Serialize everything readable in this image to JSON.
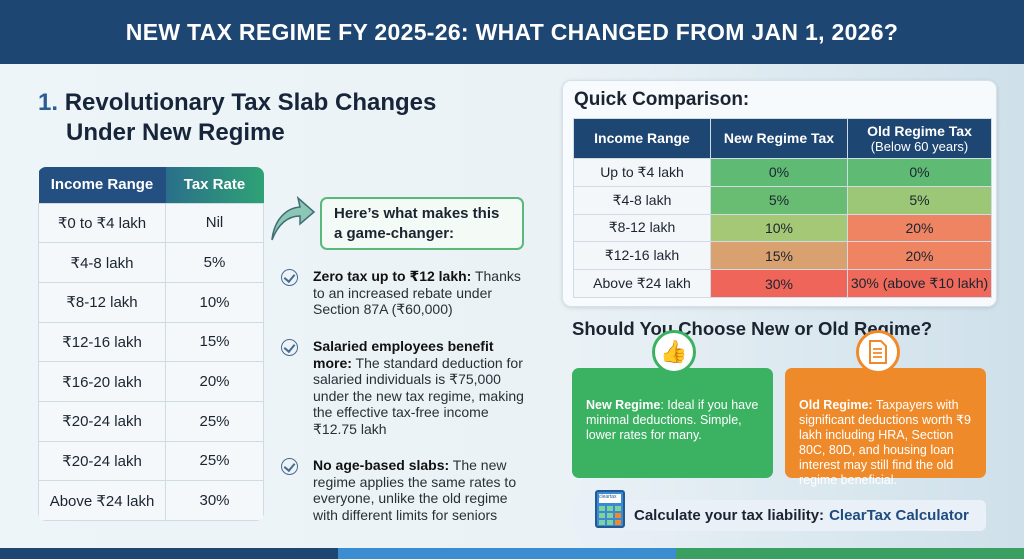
{
  "title": "NEW TAX REGIME FY 2025-26: WHAT CHANGED FROM JAN 1, 2026?",
  "section1": {
    "number": "1.",
    "heading_line1": "Revolutionary Tax Slab Changes",
    "heading_line2": "Under New Regime"
  },
  "slab_table": {
    "headers": [
      "Income Range",
      "Tax Rate"
    ],
    "rows": [
      [
        "₹0 to ₹4 lakh",
        "Nil"
      ],
      [
        "₹4-8 lakh",
        "5%"
      ],
      [
        "₹8-12 lakh",
        "10%"
      ],
      [
        "₹12-16 lakh",
        "15%"
      ],
      [
        "₹16-20 lakh",
        "20%"
      ],
      [
        "₹20-24 lakh",
        "25%"
      ],
      [
        "₹20-24 lakh",
        "25%"
      ],
      [
        "Above ₹24 lakh",
        "30%"
      ]
    ]
  },
  "callout": {
    "line1": "Here’s what makes this",
    "line2": "a game-changer:"
  },
  "bullets": [
    {
      "bold": "Zero tax up to ₹12 lakh:",
      "text": " Thanks to an increased rebate under Section 87A (₹60,000)"
    },
    {
      "bold": "Salaried employees benefit more:",
      "text": " The standard deduction for salaried individuals is ₹75,000 under the new tax regime, making the effective tax-free income ₹12.75 lakh"
    },
    {
      "bold": "No age-based slabs:",
      "text": " The new regime applies the same rates to everyone, unlike the old regime with different limits for seniors"
    }
  ],
  "comparison": {
    "title": "Quick Comparison:",
    "headers": [
      "Income Range",
      "New Regime Tax",
      "Old Regime Tax"
    ],
    "header_sub": "(Below 60 years)",
    "rows": [
      [
        "Up to ₹4 lakh",
        "0%",
        "0%"
      ],
      [
        "₹4-8 lakh",
        "5%",
        "5%"
      ],
      [
        "₹8-12 lakh",
        "10%",
        "20%"
      ],
      [
        "₹12-16 lakh",
        "15%",
        "20%"
      ],
      [
        "Above ₹24 lakh",
        "30%",
        "30% (above ₹10 lakh)"
      ]
    ],
    "colors": [
      [
        "#5fbb74",
        "#5fbb74"
      ],
      [
        "#69bd72",
        "#9cc777"
      ],
      [
        "#a4c875",
        "#ee8462"
      ],
      [
        "#d9a070",
        "#ee8462"
      ],
      [
        "#ef6559",
        "#ef6a5a"
      ]
    ]
  },
  "choose": {
    "heading": "Should You Choose New or Old Regime?",
    "new": {
      "bold": "New Regime",
      "text": ": Ideal if you have minimal deductions. Simple, lower rates for many.",
      "color": "#3bb162",
      "icon": "thumbs-up-icon"
    },
    "old": {
      "bold": "Old Regime:",
      "text": " Taxpayers with significant deductions worth ₹9 lakh including HRA, Section 80C, 80D, and housing loan interest may still find the old regime beneficial.",
      "color": "#ef8a2b",
      "icon": "document-icon"
    }
  },
  "calculator": {
    "text": "Calculate your tax liability:",
    "link": "ClearTax Calculator",
    "icon_label": "cleartax"
  }
}
